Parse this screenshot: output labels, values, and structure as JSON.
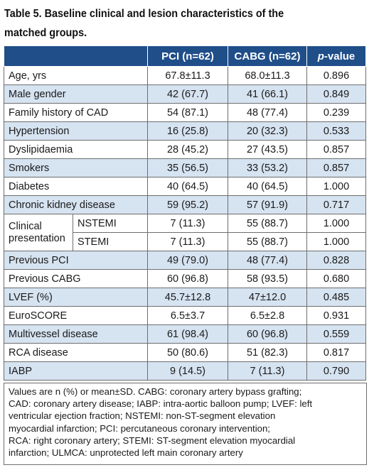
{
  "title_lines": [
    "Table 5. Baseline clinical and lesion characteristics of the",
    "matched groups."
  ],
  "headers": {
    "col0": "",
    "pci": "PCI (n=62)",
    "cabg": "CABG (n=62)",
    "p_italic": "p",
    "p_rest": "-value"
  },
  "rows_before": [
    {
      "label": "Age, yrs",
      "pci": "67.8±11.3",
      "cabg": "68.0±11.3",
      "p": "0.896"
    },
    {
      "label": "Male gender",
      "pci": "42 (67.7)",
      "cabg": "41 (66.1)",
      "p": "0.849"
    },
    {
      "label": "Family history of CAD",
      "pci": "54 (87.1)",
      "cabg": "48 (77.4)",
      "p": "0.239"
    },
    {
      "label": "Hypertension",
      "pci": "16 (25.8)",
      "cabg": "20 (32.3)",
      "p": "0.533"
    },
    {
      "label": "Dyslipidaemia",
      "pci": "28 (45.2)",
      "cabg": "27 (43.5)",
      "p": "0.857"
    },
    {
      "label": "Smokers",
      "pci": "35 (56.5)",
      "cabg": "33 (53.2)",
      "p": "0.857"
    },
    {
      "label": "Diabetes",
      "pci": "40 (64.5)",
      "cabg": "40 (64.5)",
      "p": "1.000"
    },
    {
      "label": "Chronic kidney disease",
      "pci": "59 (95.2)",
      "cabg": "57 (91.9)",
      "p": "0.717"
    }
  ],
  "clinical": {
    "label_line1": "Clinical",
    "label_line2": "presentation",
    "sub": [
      {
        "label": "NSTEMI",
        "pci": "7 (11.3)",
        "cabg": "55 (88.7)",
        "p": "1.000"
      },
      {
        "label": "STEMI",
        "pci": "7 (11.3)",
        "cabg": "55 (88.7)",
        "p": "1.000"
      }
    ]
  },
  "rows_after": [
    {
      "label": "Previous PCI",
      "pci": "49 (79.0)",
      "cabg": "48 (77.4)",
      "p": "0.828"
    },
    {
      "label": "Previous CABG",
      "pci": "60 (96.8)",
      "cabg": "58 (93.5)",
      "p": "0.680"
    },
    {
      "label": "LVEF (%)",
      "pci": "45.7±12.8",
      "cabg": "47±12.0",
      "p": "0.485"
    },
    {
      "label": "EuroSCORE",
      "pci": "6.5±3.7",
      "cabg": "6.5±2.8",
      "p": "0.931"
    },
    {
      "label": "Multivessel disease",
      "pci": "61 (98.4)",
      "cabg": "60 (96.8)",
      "p": "0.559"
    },
    {
      "label": "RCA disease",
      "pci": "50 (80.6)",
      "cabg": "51 (82.3)",
      "p": "0.817"
    },
    {
      "label": "IABP",
      "pci": "9 (14.5)",
      "cabg": "7 (11.3)",
      "p": "0.790"
    }
  ],
  "footnote_lines": [
    "Values are n (%) or mean±SD. CABG: coronary artery bypass grafting;",
    "CAD: coronary artery disease; IABP: intra-aortic balloon pump; LVEF: left",
    "ventricular ejection fraction; NSTEMI: non-ST-segment elevation",
    "myocardial infarction; PCI: percutaneous coronary intervention;",
    "RCA: right coronary artery; STEMI: ST-segment elevation myocardial",
    "infarction; ULMCA: unprotected left main coronary artery"
  ],
  "colors": {
    "header_bg": "#1f4e89",
    "header_text": "#ffffff",
    "alt_row": "#d6e3f1",
    "border": "#6e6e6e"
  }
}
